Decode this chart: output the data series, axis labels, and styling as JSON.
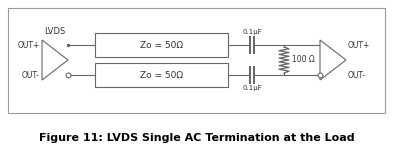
{
  "title": "Figure 11: LVDS Single AC Termination at the Load",
  "title_fontsize": 8,
  "fig_width": 3.93,
  "fig_height": 1.55,
  "dpi": 100,
  "line_color": "#666666",
  "text_color": "#333333",
  "bg_color": "#ffffff",
  "lvds_label": "LVDS",
  "out_plus_left": "OUT+",
  "out_minus_left": "OUT-",
  "out_plus_right": "OUT+",
  "out_minus_right": "OUT-",
  "zo_label": "Zo = 50Ω",
  "cap_label_top": "0.1µF",
  "cap_label_bot": "0.1µF",
  "res_label": "100 Ω"
}
